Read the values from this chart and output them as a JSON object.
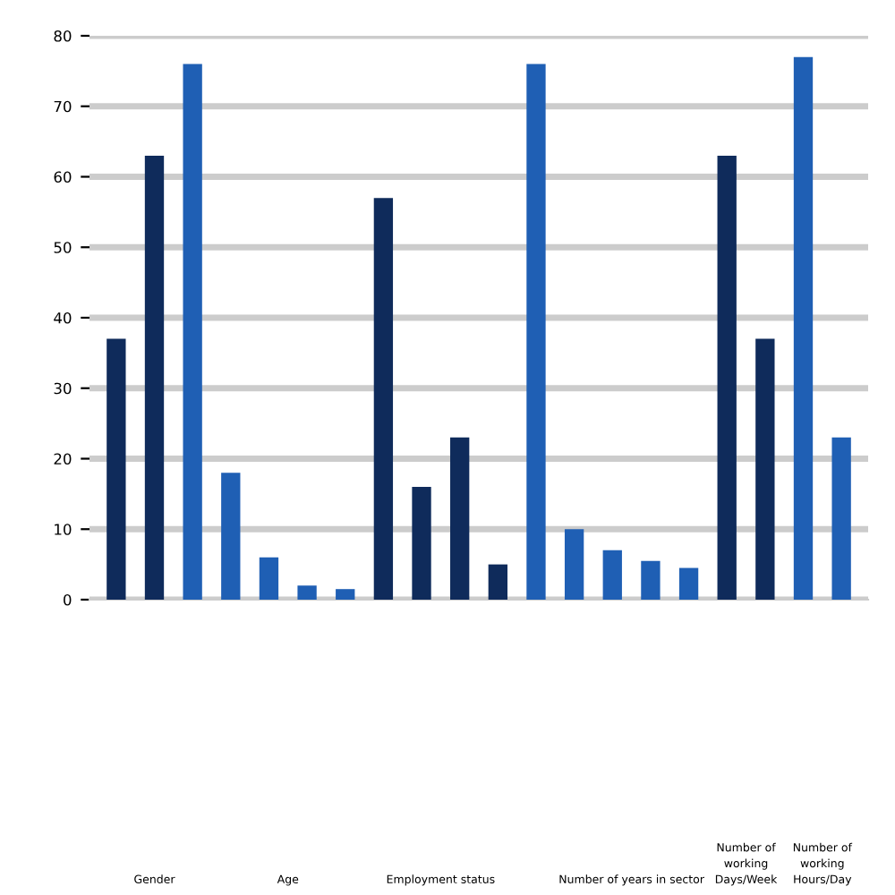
{
  "chart_data": {
    "type": "bar",
    "categories": [
      null,
      null,
      null,
      null,
      null,
      null,
      null,
      null,
      null,
      null,
      null,
      null,
      null,
      null,
      null,
      null,
      null,
      null,
      null,
      null
    ],
    "values": [
      37,
      63,
      76,
      18,
      6,
      2,
      1.5,
      57,
      16,
      23,
      5,
      76,
      10,
      7,
      5.5,
      4.5,
      63,
      37,
      77,
      23
    ],
    "colors": [
      "#0f2b5b",
      "#0f2b5b",
      "#1f5fb4",
      "#1f5fb4",
      "#1f5fb4",
      "#1f5fb4",
      "#1f5fb4",
      "#0f2b5b",
      "#0f2b5b",
      "#0f2b5b",
      "#0f2b5b",
      "#1f5fb4",
      "#1f5fb4",
      "#1f5fb4",
      "#1f5fb4",
      "#1f5fb4",
      "#0f2b5b",
      "#0f2b5b",
      "#1f5fb4",
      "#1f5fb4"
    ],
    "ylim": [
      0,
      80
    ],
    "yticks": [
      0,
      10,
      20,
      30,
      40,
      50,
      60,
      70,
      80
    ],
    "grid": "y",
    "annotations": [
      "Gender",
      "Age",
      "Employment status",
      "Number of years in sector",
      "Number of\nworking\nDays/Week",
      "Number of\nworking\nHours/Day"
    ]
  }
}
